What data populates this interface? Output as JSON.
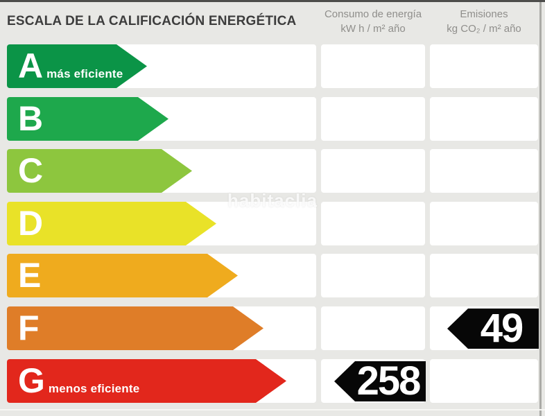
{
  "title": "ESCALA DE LA CALIFICACIÓN ENERGÉTICA",
  "columns": {
    "consumo": {
      "line1": "Consumo de energía",
      "line2": "kW h / m² año"
    },
    "emisiones": {
      "line1": "Emisiones",
      "line2": "kg CO₂ / m² año"
    }
  },
  "watermark": "habitaclia",
  "scale_rows": [
    {
      "letter": "A",
      "note": "más eficiente",
      "color": "#0b9447"
    },
    {
      "letter": "B",
      "note": "",
      "color": "#1ea84c"
    },
    {
      "letter": "C",
      "note": "",
      "color": "#8dc63e"
    },
    {
      "letter": "D",
      "note": "",
      "color": "#e9e228"
    },
    {
      "letter": "E",
      "note": "",
      "color": "#efab1e"
    },
    {
      "letter": "F",
      "note": "",
      "color": "#df7d28"
    },
    {
      "letter": "G",
      "note": "menos eficiente",
      "color": "#e2271c"
    }
  ],
  "values": {
    "consumo": "258",
    "emisiones": "49"
  },
  "chart_data": {
    "type": "bar",
    "title": "ESCALA DE LA CALIFICACIÓN ENERGÉTICA",
    "categories": [
      "A",
      "B",
      "C",
      "D",
      "E",
      "F",
      "G"
    ],
    "series": [
      {
        "name": "scale_bar_relative_length_px",
        "values": [
          202,
          233,
          267,
          302,
          333,
          370,
          403
        ]
      }
    ],
    "bar_colors": [
      "#0b9447",
      "#1ea84c",
      "#8dc63e",
      "#e9e228",
      "#efab1e",
      "#df7d28",
      "#e2271c"
    ],
    "annotations": [
      {
        "metric": "Consumo de energía (kW h / m² año)",
        "value": 258,
        "rating": "G"
      },
      {
        "metric": "Emisiones (kg CO₂ / m² año)",
        "value": 49,
        "rating": "F"
      }
    ],
    "legend_position": "none",
    "grid": false
  }
}
